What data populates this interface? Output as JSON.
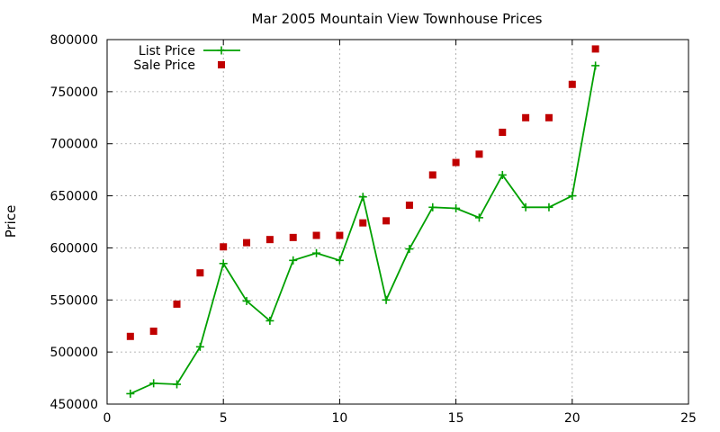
{
  "chart_data": {
    "type": "line",
    "title": "Mar 2005 Mountain View Townhouse Prices",
    "xlabel": "",
    "ylabel": "Price",
    "xlim": [
      0,
      25
    ],
    "ylim": [
      450000,
      800000
    ],
    "xticks": [
      0,
      5,
      10,
      15,
      20,
      25
    ],
    "yticks": [
      450000,
      500000,
      550000,
      600000,
      650000,
      700000,
      750000,
      800000
    ],
    "grid": true,
    "legend_position": "top-left",
    "series": [
      {
        "name": "List Price",
        "style": "line-points",
        "color": "#00a000",
        "x": [
          1,
          2,
          3,
          4,
          5,
          6,
          7,
          8,
          9,
          10,
          11,
          12,
          13,
          14,
          15,
          16,
          17,
          18,
          19,
          20,
          21
        ],
        "y": [
          460000,
          470000,
          469000,
          505000,
          585000,
          549000,
          530000,
          588000,
          595000,
          588000,
          649000,
          550000,
          599000,
          639000,
          638000,
          629000,
          670000,
          639000,
          639000,
          650000,
          775000
        ]
      },
      {
        "name": "Sale Price",
        "style": "points",
        "color": "#c00000",
        "x": [
          1,
          2,
          3,
          4,
          5,
          6,
          7,
          8,
          9,
          10,
          11,
          12,
          13,
          14,
          15,
          16,
          17,
          18,
          19,
          20,
          21
        ],
        "y": [
          515000,
          520000,
          546000,
          576000,
          601000,
          605000,
          608000,
          610000,
          612000,
          612000,
          624000,
          626000,
          641000,
          670000,
          682000,
          690000,
          711000,
          725000,
          725000,
          757000,
          791000
        ]
      }
    ]
  }
}
